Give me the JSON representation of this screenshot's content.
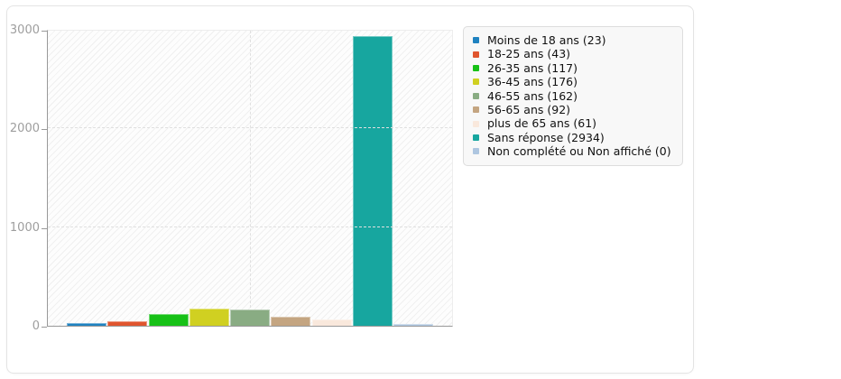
{
  "chart_data": {
    "type": "bar",
    "title": "",
    "xlabel": "",
    "ylabel": "",
    "categories": [
      "Moins de 18 ans",
      "18-25 ans",
      "26-35 ans",
      "36-45 ans",
      "46-55 ans",
      "56-65 ans",
      "plus de 65 ans",
      "Sans réponse",
      "Non complété ou Non affiché"
    ],
    "values": [
      23,
      43,
      117,
      176,
      162,
      92,
      61,
      2934,
      0
    ],
    "colors": [
      "#1f82c0",
      "#e0552e",
      "#17c117",
      "#d0d021",
      "#89ac83",
      "#c4a581",
      "#f9e8dc",
      "#17a69f",
      "#aec6e0"
    ],
    "legend_entries": [
      "Moins de 18 ans (23)",
      "18-25 ans (43)",
      "26-35 ans (117)",
      "36-45 ans (176)",
      "46-55 ans (162)",
      "56-65 ans (92)",
      "plus de 65 ans (61)",
      "Sans réponse (2934)",
      "Non complété ou Non affiché (0)"
    ],
    "ylim": [
      0,
      3000
    ],
    "yticks": [
      "0",
      "1000",
      "2000",
      "3000"
    ],
    "legend_position": "right",
    "grid": "dashed"
  }
}
